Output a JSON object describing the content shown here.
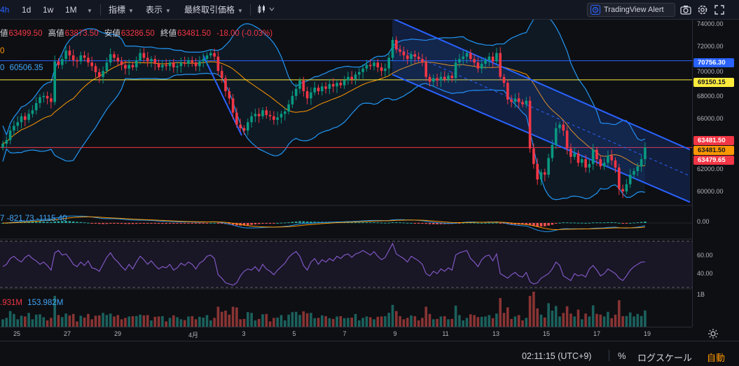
{
  "toolbar": {
    "interval_active": "4h",
    "intervals": [
      "1d",
      "1w",
      "1M"
    ],
    "indicators": "指標",
    "display": "表示",
    "last_price": "最終取引価格",
    "alert": "TradingView Alert"
  },
  "legend": {
    "ohlc": {
      "open_label": "値",
      "open": "63499.50",
      "high_label": "高値",
      "high": "63873.50",
      "low_label": "安値",
      "low": "63286.50",
      "close_label": "終値",
      "close": "63481.50",
      "change": "-18.00 (-0.03%)"
    },
    "line2": "0",
    "line3_prefix": "0",
    "line3_value": "60506.35",
    "macd_text": "7   -821.73   -1115.40",
    "volume_red": ".931M",
    "volume_blue": "153.982M"
  },
  "price_axis": {
    "ticks": [
      "74000.00",
      "72000.00",
      "70000.00",
      "68000.00",
      "66000.00",
      "62000.00",
      "60000.00"
    ],
    "labels": [
      {
        "text": "70756.30",
        "color": "#2962ff"
      },
      {
        "text": "69150.15",
        "color": "#ffeb3b"
      },
      {
        "text": "63481.50",
        "color": "#f23645"
      },
      {
        "text": "63481.50",
        "color": "#ff9800"
      },
      {
        "text": "63479.65",
        "color": "#f23645"
      }
    ],
    "macd_tick": "0.00",
    "rsi_ticks": [
      "60.00",
      "40.00"
    ],
    "vol_tick": "1B"
  },
  "time_axis": {
    "ticks": [
      "25",
      "27",
      "29",
      "4月",
      "3",
      "5",
      "7",
      "9",
      "11",
      "13",
      "15",
      "17",
      "19"
    ]
  },
  "bottom_bar": {
    "clock": "02:11:15 (UTC+9)",
    "percent": "%",
    "log": "ログスケール",
    "auto": "自動"
  },
  "chart_data": [
    {
      "type": "candlestick",
      "series": [
        {
          "name": "",
          "close": [
            63800,
            64100,
            64900,
            65300,
            65600,
            66100,
            65800,
            66300,
            66600,
            67200,
            67700,
            67800,
            67600,
            67300,
            70700,
            70400,
            70900,
            71600,
            71200,
            70800,
            70700,
            71200,
            71000,
            70600,
            70300,
            69800,
            69400,
            69900,
            70600,
            71300,
            71000,
            70700,
            70400,
            70100,
            70400,
            70200,
            70800,
            71400,
            71000,
            70700,
            70900,
            70500,
            70200,
            70400,
            70300,
            70600,
            70200,
            70300,
            70600,
            70500,
            70800,
            70600,
            70300,
            70700,
            70900,
            71200,
            71400,
            71100,
            69900,
            69300,
            68200,
            67600,
            66400,
            65400,
            65100,
            64900,
            65600,
            66100,
            66300,
            66100,
            66600,
            66200,
            66100,
            65800,
            66000,
            66300,
            66500,
            67100,
            67800,
            68400,
            69100,
            68200,
            67600,
            68100,
            68500,
            68200,
            68600,
            68400,
            68800,
            68600,
            68900,
            68700,
            69100,
            69400,
            69200,
            69600,
            69800,
            70100,
            70400,
            70300,
            70600,
            70200,
            69900,
            70100,
            71000,
            72500,
            71700,
            71500,
            71200,
            70900,
            71300,
            71100,
            70900,
            70600,
            69400,
            69000,
            69300,
            69100,
            69400,
            69200,
            69500,
            69300,
            70600,
            70900,
            71100,
            71400,
            70900,
            70600,
            70100,
            70500,
            70800,
            71100,
            70700,
            71400,
            69400,
            68900,
            67500,
            67300,
            67600,
            67300,
            67100,
            67400,
            63400,
            62100,
            60800,
            61400,
            61200,
            62600,
            63700,
            65100,
            65400,
            64900,
            63400,
            62700,
            63000,
            62200,
            62500,
            61800,
            62100,
            63300,
            62500,
            61900,
            62200,
            62800,
            62400,
            61800,
            60000,
            59800,
            60400,
            61200,
            61500,
            61900,
            62500,
            63481.5
          ],
          "markers": "high/low wicks per candle"
        }
      ],
      "lines": {
        "horizontal_levels": [
          70756.3,
          69150.15,
          63481.5
        ],
        "regression_channel": "descending, from 9th to 19th"
      },
      "title": "",
      "xlabel": "",
      "ylabel": "",
      "ylim": [
        59000,
        74000
      ]
    },
    {
      "type": "bar",
      "title": "",
      "series": [
        {
          "name": "",
          "value": "-1115.40"
        }
      ]
    },
    {
      "type": "line",
      "title": "",
      "ylim": [
        30,
        70
      ],
      "series": [
        {
          "name": "",
          "values": [
            48,
            50,
            55,
            57,
            54,
            52,
            56,
            58,
            55,
            53,
            50,
            52,
            49,
            45,
            60,
            62,
            58,
            59,
            55,
            50,
            48,
            52,
            49,
            53,
            47,
            46,
            44,
            50,
            56,
            60,
            55,
            52,
            48,
            45,
            50,
            46,
            52,
            57,
            54,
            50,
            53,
            49,
            46,
            48,
            47,
            50,
            45,
            47,
            51,
            49,
            52,
            50,
            46,
            51,
            53,
            57,
            58,
            55,
            41,
            38,
            34,
            33,
            32,
            34,
            40,
            44,
            46,
            45,
            48,
            44,
            50,
            46,
            44,
            41,
            45,
            48,
            51,
            56,
            59,
            61,
            57,
            49,
            45,
            52,
            55,
            50,
            54,
            52,
            55,
            53,
            57,
            55,
            58,
            59,
            56,
            59,
            60,
            62,
            60,
            58,
            61,
            57,
            54,
            56,
            62,
            68,
            59,
            57,
            55,
            52,
            57,
            55,
            53,
            50,
            42,
            40,
            44,
            42,
            46,
            44,
            47,
            45,
            58,
            60,
            61,
            62,
            55,
            52,
            48,
            54,
            57,
            58,
            53,
            59,
            42,
            40,
            38,
            41,
            43,
            40,
            39,
            43,
            35,
            33,
            34,
            38,
            40,
            42,
            46,
            52,
            49,
            40,
            38,
            36,
            42,
            40,
            41,
            39,
            46,
            49,
            45,
            40,
            42,
            46,
            44,
            42,
            38,
            36,
            40,
            45,
            48,
            50,
            52,
            52
          ]
        }
      ]
    },
    {
      "type": "bar",
      "title": "",
      "series": [
        {
          "name": "",
          "values": "volume per candle (relative)"
        }
      ]
    }
  ]
}
